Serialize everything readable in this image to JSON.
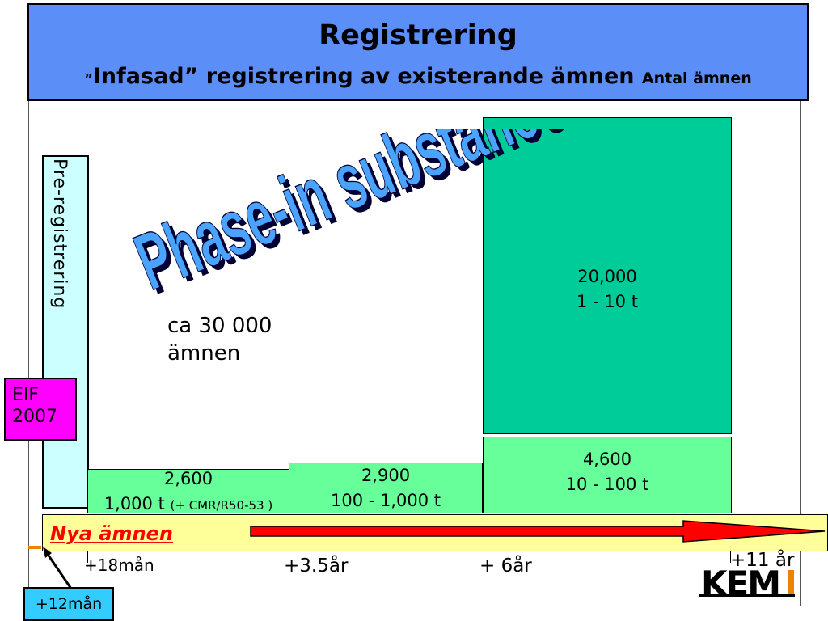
{
  "header": {
    "title": "Registrering",
    "subtitle_quote": "”",
    "subtitle_main": "Infasad” registrering av existerande ämnen",
    "subtitle_small": "Antal ämnen"
  },
  "prereg_label": "Pre-registrering",
  "watermark": "Phase-in substances",
  "count_note": {
    "line1": "ca 30 000",
    "line2": "ämnen"
  },
  "eif": {
    "line1": "EIF",
    "line2": "2007"
  },
  "boxes": {
    "b1": {
      "count": "2,600",
      "tonnage": "1,000 t",
      "note": "(+ CMR/R50-53 )"
    },
    "b2": {
      "count": "2,900",
      "tonnage": "100 - 1,000 t"
    },
    "b3": {
      "count": "4,600",
      "tonnage": "10 - 100 t"
    },
    "b4": {
      "count": "20,000",
      "tonnage": "1 - 10 t"
    }
  },
  "nya_label": "Nya ämnen",
  "timeline": [
    "+18mån",
    "+3.5år",
    "+ 6år",
    "+11 år"
  ],
  "plus12": "+12mån",
  "logo": "KEM",
  "colors": {
    "header_bg": "#5b8ff7",
    "light_green": "#66ff99",
    "dark_green": "#00cc99",
    "magenta": "#ff00ff",
    "cyan_light": "#ccffff",
    "yellow": "#ffff99",
    "arrow_red": "#ff0000",
    "blue_badge": "#33ccff"
  }
}
